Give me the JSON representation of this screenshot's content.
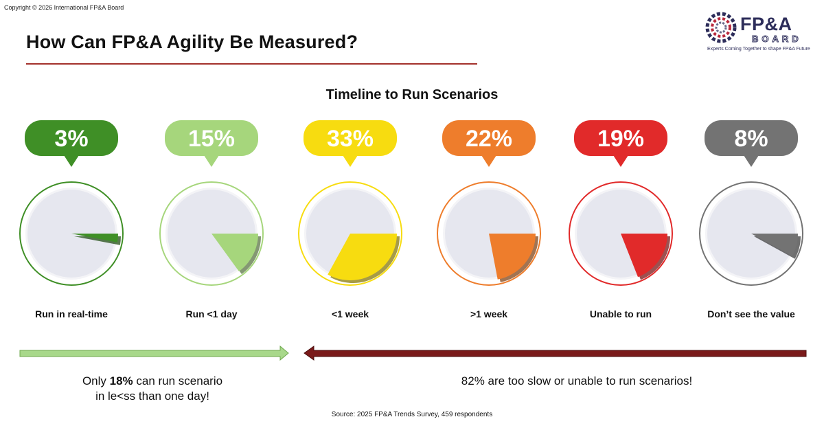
{
  "copyright": "Copyright © 2026 International FP&A Board",
  "page_title": "How Can FP&A Agility Be Measured?",
  "logo": {
    "brand": "FP&A",
    "sub": "BOARD",
    "tagline": "Experts Coming Together to shape FP&A Future"
  },
  "colors": {
    "title_rule": "#a3312b",
    "navy": "#2d2d5a",
    "left_arrow": "#a8d88a",
    "right_arrow": "#7a1a1a"
  },
  "chart_data": {
    "type": "pie",
    "title": "Timeline to Run Scenarios",
    "categories": [
      "Run in real-time",
      "Run <1 day",
      "<1 week",
      ">1 week",
      "Unable to run",
      "Don’t see the value"
    ],
    "values": [
      3,
      15,
      33,
      22,
      19,
      8
    ],
    "labels": [
      "3%",
      "15%",
      "33%",
      "22%",
      "19%",
      "8%"
    ],
    "unit": "%",
    "colors": [
      "#3f8f26",
      "#a6d67c",
      "#f7dc10",
      "#ee7d2c",
      "#e12a2a",
      "#737373"
    ]
  },
  "summary": {
    "left_prefix": "Only ",
    "left_bold": "18%",
    "left_suffix": " can run scenario",
    "left_line2": "in le<ss than one day!",
    "right": "82% are too slow or unable to run scenarios!"
  },
  "source": "Source: 2025 FP&A Trends Survey, 459 respondents"
}
